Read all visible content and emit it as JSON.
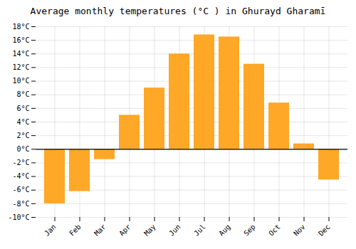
{
  "chart_data": {
    "type": "bar",
    "title": "Average monthly temperatures (°C ) in Ghurayd Gharamī",
    "categories": [
      "Jan",
      "Feb",
      "Mar",
      "Apr",
      "May",
      "Jun",
      "Jul",
      "Aug",
      "Sep",
      "Oct",
      "Nov",
      "Dec"
    ],
    "values": [
      -8.0,
      -6.2,
      -1.5,
      5.0,
      9.0,
      14.0,
      16.8,
      16.5,
      12.5,
      6.8,
      0.8,
      -4.5
    ],
    "color": "#FFA726",
    "ylim": [
      -10,
      18
    ],
    "yticks": [
      {
        "value": -10,
        "label": "-10°C"
      },
      {
        "value": -8,
        "label": "-8°C"
      },
      {
        "value": -6,
        "label": "-6°C"
      },
      {
        "value": -4,
        "label": "-4°C"
      },
      {
        "value": -2,
        "label": "-2°C"
      },
      {
        "value": 0,
        "label": "0°C"
      },
      {
        "value": 2,
        "label": "2°C"
      },
      {
        "value": 4,
        "label": "4°C"
      },
      {
        "value": 6,
        "label": "6°C"
      },
      {
        "value": 8,
        "label": "8°C"
      },
      {
        "value": 10,
        "label": "10°C"
      },
      {
        "value": 12,
        "label": "12°C"
      },
      {
        "value": 14,
        "label": "14°C"
      },
      {
        "value": 16,
        "label": "16°C"
      },
      {
        "value": 18,
        "label": "18°C"
      }
    ],
    "grid": true
  }
}
